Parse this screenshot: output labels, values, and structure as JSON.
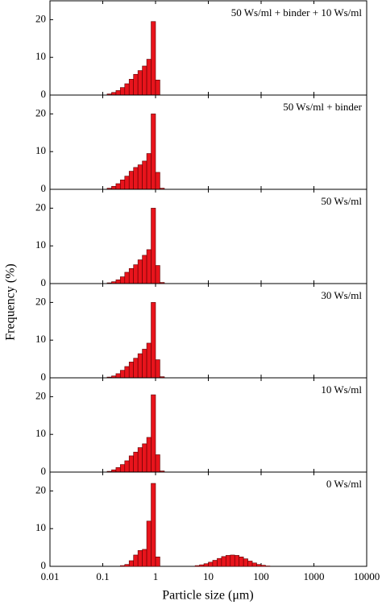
{
  "ylabel": "Frequency (%)",
  "xlabel": "Particle size (μm)",
  "chart_data": [
    {
      "type": "histogram",
      "label": "50 Ws/ml + binder + 10 Ws/ml",
      "color": "#e8141c",
      "xscale": "log",
      "bins": [
        0.121,
        0.147,
        0.178,
        0.215,
        0.261,
        0.316,
        0.383,
        0.464,
        0.562,
        0.681,
        0.825,
        1,
        1.21
      ],
      "values": [
        0.3,
        0.7,
        1.2,
        2,
        3,
        4.2,
        5.5,
        6.5,
        7.7,
        9.5,
        19.5,
        4
      ],
      "xlim": [
        0.01,
        10000
      ],
      "ylim": [
        0,
        25
      ],
      "yticks": [
        0,
        10,
        20
      ]
    },
    {
      "type": "histogram",
      "label": "50 Ws/ml + binder",
      "color": "#e8141c",
      "xscale": "log",
      "bins": [
        0.121,
        0.147,
        0.178,
        0.215,
        0.261,
        0.316,
        0.383,
        0.464,
        0.562,
        0.681,
        0.825,
        1,
        1.21,
        1.47
      ],
      "values": [
        0.3,
        0.8,
        1.5,
        2.5,
        3.5,
        4.8,
        5.8,
        6.5,
        7.5,
        9.5,
        20,
        4.5,
        0.3
      ],
      "xlim": [
        0.01,
        10000
      ],
      "ylim": [
        0,
        25
      ],
      "yticks": [
        0,
        10,
        20
      ]
    },
    {
      "type": "histogram",
      "label": "50 Ws/ml",
      "color": "#e8141c",
      "xscale": "log",
      "bins": [
        0.121,
        0.147,
        0.178,
        0.215,
        0.261,
        0.316,
        0.383,
        0.464,
        0.562,
        0.681,
        0.825,
        1,
        1.21,
        1.47
      ],
      "values": [
        0.2,
        0.5,
        1,
        1.8,
        3,
        4,
        5,
        6.3,
        7.5,
        9,
        20,
        4.8,
        0.3
      ],
      "xlim": [
        0.01,
        10000
      ],
      "ylim": [
        0,
        25
      ],
      "yticks": [
        0,
        10,
        20
      ]
    },
    {
      "type": "histogram",
      "label": "30 Ws/ml",
      "color": "#e8141c",
      "xscale": "log",
      "bins": [
        0.121,
        0.147,
        0.178,
        0.215,
        0.261,
        0.316,
        0.383,
        0.464,
        0.562,
        0.681,
        0.825,
        1,
        1.21,
        1.47
      ],
      "values": [
        0.2,
        0.5,
        1.1,
        2,
        3,
        4.2,
        5.2,
        6.4,
        7.6,
        9.2,
        20,
        4.8,
        0.3
      ],
      "xlim": [
        0.01,
        10000
      ],
      "ylim": [
        0,
        25
      ],
      "yticks": [
        0,
        10,
        20
      ]
    },
    {
      "type": "histogram",
      "label": "10 Ws/ml",
      "color": "#e8141c",
      "xscale": "log",
      "bins": [
        0.121,
        0.147,
        0.178,
        0.215,
        0.261,
        0.316,
        0.383,
        0.464,
        0.562,
        0.681,
        0.825,
        1,
        1.21,
        1.47
      ],
      "values": [
        0.2,
        0.6,
        1.2,
        2,
        3,
        4.3,
        5.3,
        6.5,
        7.5,
        9.2,
        20.5,
        4.6,
        0.3
      ],
      "xlim": [
        0.01,
        10000
      ],
      "ylim": [
        0,
        25
      ],
      "yticks": [
        0,
        10,
        20
      ]
    },
    {
      "type": "histogram",
      "label": "0 Ws/ml",
      "color": "#e8141c",
      "xscale": "log",
      "bins": [
        0.121,
        0.147,
        0.178,
        0.215,
        0.261,
        0.316,
        0.383,
        0.464,
        0.562,
        0.681,
        0.825,
        1,
        1.21,
        1.47,
        1.78,
        2.15,
        2.61,
        3.16,
        3.83,
        4.64,
        5.62,
        6.81,
        8.25,
        10,
        12.1,
        14.7,
        17.8,
        21.5,
        26.1,
        31.6,
        38.3,
        46.4,
        56.2,
        68.1,
        82.5,
        100,
        121,
        147,
        178
      ],
      "values": [
        0,
        0,
        0,
        0.2,
        0.5,
        1.5,
        3,
        4.2,
        4.5,
        12,
        22,
        2.5,
        0,
        0,
        0,
        0,
        0,
        0,
        0,
        0,
        0.2,
        0.4,
        0.7,
        1.1,
        1.6,
        2.1,
        2.6,
        2.9,
        3,
        2.9,
        2.5,
        2,
        1.4,
        0.9,
        0.5,
        0.3,
        0.1,
        0
      ],
      "xlim": [
        0.01,
        10000
      ],
      "ylim": [
        0,
        25
      ],
      "yticks": [
        0,
        10,
        20
      ],
      "xticks": [
        0.01,
        0.1,
        1,
        10,
        100,
        1000,
        10000
      ]
    }
  ]
}
